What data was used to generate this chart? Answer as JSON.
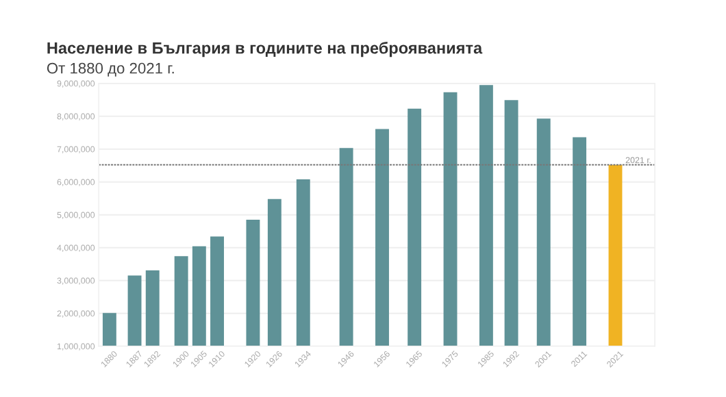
{
  "chart_data": {
    "type": "bar",
    "title": "Население в България в годините на преброяванията",
    "subtitle": "От 1880 до 2021 г.",
    "x": [
      1880,
      1887,
      1892,
      1900,
      1905,
      1910,
      1920,
      1926,
      1934,
      1946,
      1956,
      1965,
      1975,
      1985,
      1992,
      2001,
      2011,
      2021
    ],
    "values": [
      2010000,
      3150000,
      3310000,
      3740000,
      4040000,
      4340000,
      4850000,
      5480000,
      6080000,
      7030000,
      7610000,
      8230000,
      8730000,
      8950000,
      8490000,
      7930000,
      7360000,
      6520000
    ],
    "colors": [
      "#5f9297",
      "#5f9297",
      "#5f9297",
      "#5f9297",
      "#5f9297",
      "#5f9297",
      "#5f9297",
      "#5f9297",
      "#5f9297",
      "#5f9297",
      "#5f9297",
      "#5f9297",
      "#5f9297",
      "#5f9297",
      "#5f9297",
      "#5f9297",
      "#5f9297",
      "#f0b323"
    ],
    "xlim": [
      1877,
      2032
    ],
    "xticks": [
      1880,
      1887,
      1892,
      1900,
      1905,
      1910,
      1920,
      1926,
      1934,
      1946,
      1956,
      1965,
      1975,
      1985,
      1992,
      2001,
      2011,
      2021
    ],
    "ylim": [
      1000000,
      9000000
    ],
    "yticks": [
      {
        "value": 1000000,
        "label": "1,000,000"
      },
      {
        "value": 2000000,
        "label": "2,000,000"
      },
      {
        "value": 3000000,
        "label": "3,000,000"
      },
      {
        "value": 4000000,
        "label": "4,000,000"
      },
      {
        "value": 5000000,
        "label": "5,000,000"
      },
      {
        "value": 6000000,
        "label": "6,000,000"
      },
      {
        "value": 7000000,
        "label": "7,000,000"
      },
      {
        "value": 8000000,
        "label": "8,000,000"
      },
      {
        "value": 9000000,
        "label": "9,000,000"
      }
    ],
    "ref_lines": [
      {
        "axis": "y",
        "value": 6520000,
        "label": "2021 г.",
        "color": "#777777",
        "line_style": "dashed"
      }
    ],
    "grid": "y",
    "legend": false
  }
}
